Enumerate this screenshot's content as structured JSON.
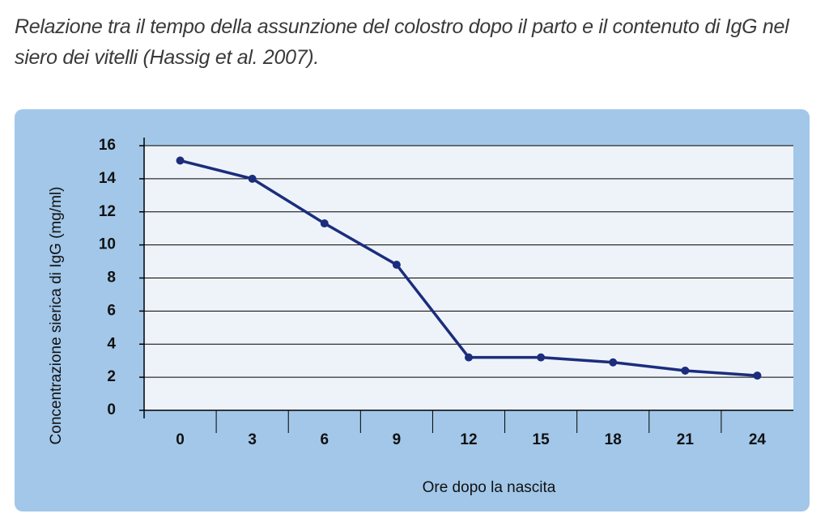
{
  "chart_data": {
    "type": "line",
    "title": "Relazione tra il tempo della assunzione del colostro dopo il parto e il contenuto di IgG nel siero dei vitelli (Hassig et al. 2007).",
    "x_label": "Ore dopo la nascita",
    "y_label": "Concentrazione sierica di IgG (mg/ml)",
    "categories": [
      "0",
      "3",
      "6",
      "9",
      "12",
      "15",
      "18",
      "21",
      "24"
    ],
    "values": [
      15.1,
      14.0,
      11.3,
      8.8,
      3.2,
      3.2,
      2.9,
      2.4,
      2.1
    ],
    "color": "#1b2d7c",
    "ylim": [
      0,
      16
    ],
    "yticks": [
      0,
      2,
      4,
      6,
      8,
      10,
      12,
      14,
      16
    ],
    "grid": true
  }
}
